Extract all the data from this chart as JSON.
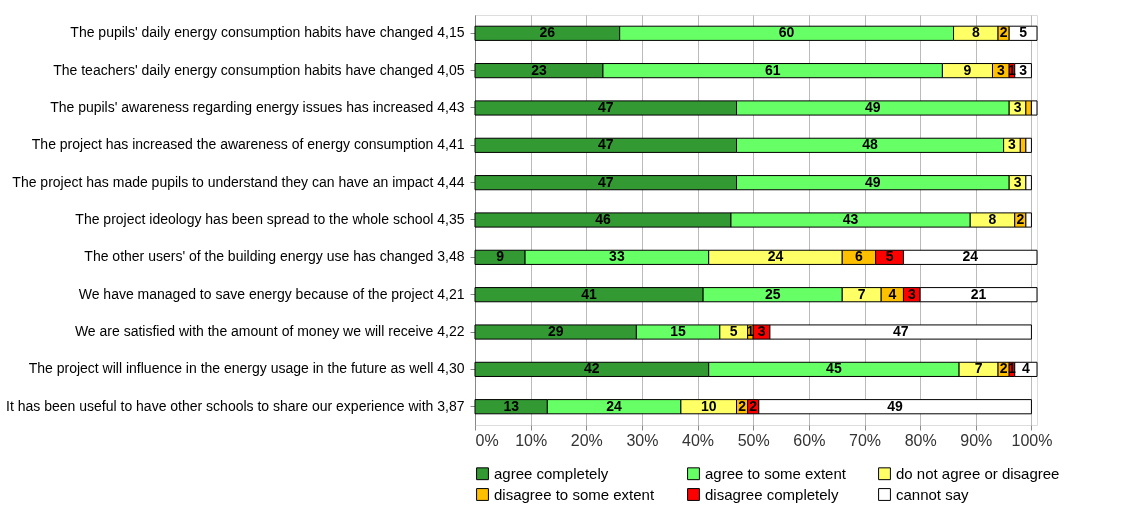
{
  "chart_data": {
    "type": "bar",
    "orientation": "horizontal",
    "stacked": true,
    "data_labels": true,
    "grid": "x",
    "legend": "bottom",
    "categories": [
      "The pupils' daily energy consumption habits have changed 4,15",
      "The teachers' daily energy consumption habits have changed 4,05",
      "The pupils' awareness regarding energy issues has increased 4,43",
      "The project has increased the awareness of energy consumption 4,41",
      "The project has made pupils to understand they can have an impact 4,44",
      "The project ideology has been spread to the whole school 4,35",
      "The other users' of the building energy use has changed 3,48",
      "We have managed to save energy because of the project 4,21",
      "We are satisfied with the amount of money we will receive 4,22",
      "The project will influence in the energy usage in the future as well 4,30",
      "It has been useful to have other schools to share our experience with 3,87"
    ],
    "xlim": [
      0,
      101
    ],
    "xticks": [
      {
        "value": 0,
        "label": "0%"
      },
      {
        "value": 10,
        "label": "10%"
      },
      {
        "value": 20,
        "label": "20%"
      },
      {
        "value": 30,
        "label": "30%"
      },
      {
        "value": 40,
        "label": "40%"
      },
      {
        "value": 50,
        "label": "50%"
      },
      {
        "value": 60,
        "label": "60%"
      },
      {
        "value": 70,
        "label": "70%"
      },
      {
        "value": 80,
        "label": "80%"
      },
      {
        "value": 90,
        "label": "90%"
      },
      {
        "value": 100,
        "label": "100%"
      }
    ],
    "series": [
      {
        "name": "agree completely",
        "color": "#339933",
        "values": [
          26,
          23,
          47,
          47,
          47,
          46,
          9,
          41,
          29,
          42,
          13
        ]
      },
      {
        "name": "agree to some extent",
        "color": "#66ff66",
        "values": [
          60,
          61,
          49,
          48,
          49,
          43,
          33,
          25,
          15,
          45,
          24
        ]
      },
      {
        "name": "do not agree or disagree",
        "color": "#ffff66",
        "values": [
          8,
          9,
          3,
          3,
          3,
          8,
          24,
          7,
          5,
          7,
          10
        ]
      },
      {
        "name": "disagree to some extent",
        "color": "#ffc000",
        "values": [
          2,
          3,
          1,
          1,
          0,
          2,
          6,
          4,
          1,
          2,
          2
        ],
        "value_labels": [
          "2",
          "3",
          null,
          null,
          null,
          "2",
          "6",
          "4",
          "1",
          "2",
          "2"
        ]
      },
      {
        "name": "disagree completely",
        "color": "#ff0000",
        "values": [
          0,
          1,
          0,
          0,
          0,
          0,
          5,
          3,
          3,
          1,
          2
        ],
        "value_labels": [
          null,
          "1",
          null,
          null,
          null,
          null,
          "5",
          "3",
          "3",
          "1",
          "2"
        ]
      },
      {
        "name": "cannot say",
        "color": "#ffffff",
        "values": [
          5,
          3,
          1,
          1,
          1,
          1,
          24,
          21,
          47,
          4,
          49
        ],
        "value_labels": [
          "5",
          "3",
          null,
          null,
          null,
          null,
          "24",
          "21",
          "47",
          "4",
          "49"
        ]
      }
    ]
  }
}
